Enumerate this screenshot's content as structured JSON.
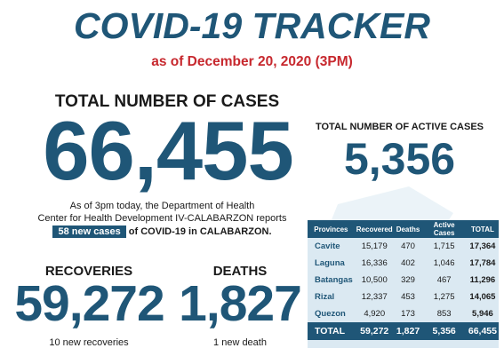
{
  "header": {
    "title": "COVID-19 TRACKER",
    "as_of": "as of December 20, 2020 (3PM)"
  },
  "total": {
    "label": "TOTAL NUMBER OF CASES",
    "value": "66,455"
  },
  "active": {
    "label": "TOTAL NUMBER OF ACTIVE CASES",
    "value": "5,356"
  },
  "report": {
    "line1": "As of 3pm today, the Department of Health",
    "line2": "Center for Health Development IV-CALABARZON reports",
    "new_cases": "58 new cases",
    "line3_rest": "of COVID-19 in CALABARZON."
  },
  "recoveries": {
    "label": "RECOVERIES",
    "value": "59,272",
    "sub": "10 new recoveries"
  },
  "deaths": {
    "label": "DEATHS",
    "value": "1,827",
    "sub": "1 new death"
  },
  "table": {
    "headers": [
      "Provinces",
      "Recovered",
      "Deaths",
      "Active Cases",
      "TOTAL"
    ],
    "rows": [
      [
        "Cavite",
        "15,179",
        "470",
        "1,715",
        "17,364"
      ],
      [
        "Laguna",
        "16,336",
        "402",
        "1,046",
        "17,784"
      ],
      [
        "Batangas",
        "10,500",
        "329",
        "467",
        "11,296"
      ],
      [
        "Rizal",
        "12,337",
        "453",
        "1,275",
        "14,065"
      ],
      [
        "Quezon",
        "4,920",
        "173",
        "853",
        "5,946"
      ]
    ],
    "total_row": [
      "TOTAL",
      "59,272",
      "1,827",
      "5,356",
      "66,455"
    ]
  },
  "colors": {
    "primary": "#1f5677",
    "accent_red": "#c7282e",
    "table_bg": "#dbe9f2"
  }
}
